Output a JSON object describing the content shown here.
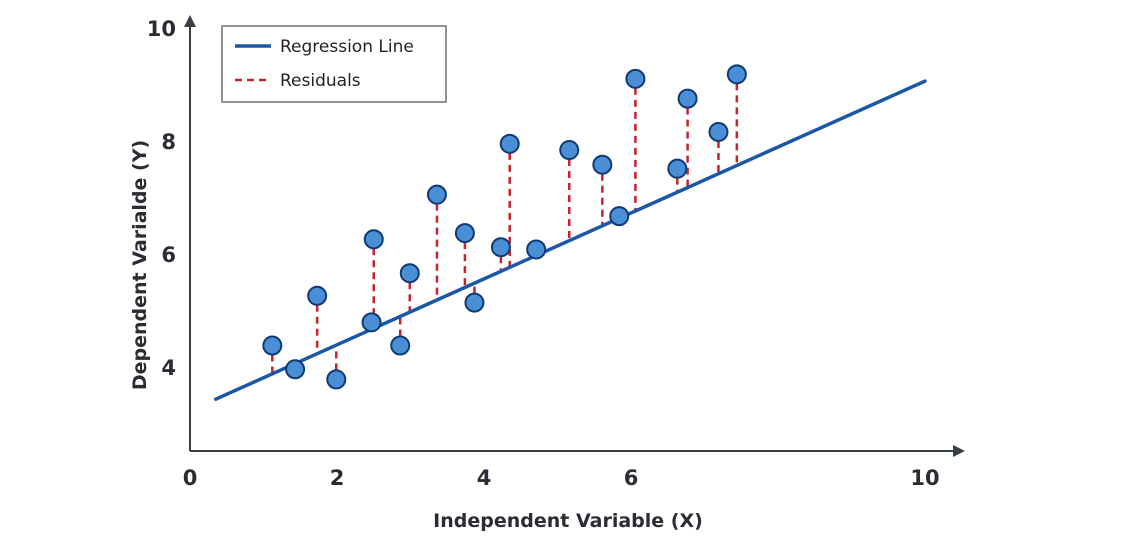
{
  "colors": {
    "regression": "#1b56a8",
    "residual": "#c4242c",
    "point_fill": "#4a8fd6",
    "point_stroke": "#0f3a73",
    "axis": "#3b3f47"
  },
  "chart_data": {
    "type": "scatter",
    "xlabel": "Independent Variable (X)",
    "ylabel": "Dependent Varialde (Y)",
    "xlim": [
      0,
      10
    ],
    "ylim": [
      2.2,
      10
    ],
    "x_ticks": [
      "0",
      "2",
      "4",
      "6",
      "10"
    ],
    "x_tick_values": [
      0,
      2,
      4,
      6,
      10
    ],
    "y_ticks": [
      "4",
      "6",
      "8",
      "10"
    ],
    "y_tick_values": [
      4,
      6,
      8,
      10
    ],
    "grid": false,
    "legend": {
      "position": "top-left",
      "entries": [
        "Regression Line",
        "Residuals"
      ]
    },
    "regression_line": {
      "name": "Regression Line",
      "x": [
        0.35,
        10.0
      ],
      "y": [
        3.43,
        9.06
      ]
    },
    "residuals_name": "Residuals",
    "points": {
      "x": [
        1.12,
        1.43,
        1.73,
        1.99,
        2.47,
        2.5,
        2.86,
        2.99,
        3.36,
        3.74,
        3.87,
        4.23,
        4.35,
        4.71,
        5.16,
        5.61,
        5.84,
        6.06,
        6.63,
        6.77,
        7.19,
        7.44
      ],
      "y": [
        4.38,
        3.96,
        5.26,
        3.78,
        4.79,
        6.26,
        4.38,
        5.66,
        7.05,
        6.37,
        5.14,
        6.12,
        7.95,
        6.08,
        7.84,
        7.58,
        6.67,
        9.1,
        7.51,
        8.75,
        8.16,
        9.18
      ]
    }
  }
}
